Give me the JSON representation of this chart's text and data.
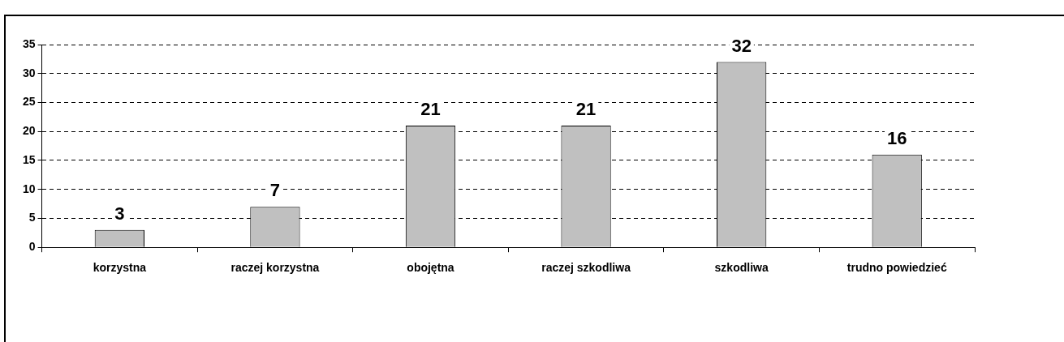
{
  "chart_data": {
    "type": "bar",
    "categories": [
      "korzystna",
      "raczej korzystna",
      "obojętna",
      "raczej szkodliwa",
      "szkodliwa",
      "trudno powiedzieć"
    ],
    "values": [
      3,
      7,
      21,
      21,
      32,
      16
    ],
    "color": "#c0c0c0",
    "ylim": [
      0,
      35
    ],
    "yticks": [
      0,
      5,
      10,
      15,
      20,
      25,
      30,
      35
    ],
    "grid": "y",
    "line_style": "dashed",
    "data_labels": true,
    "legend": false
  }
}
